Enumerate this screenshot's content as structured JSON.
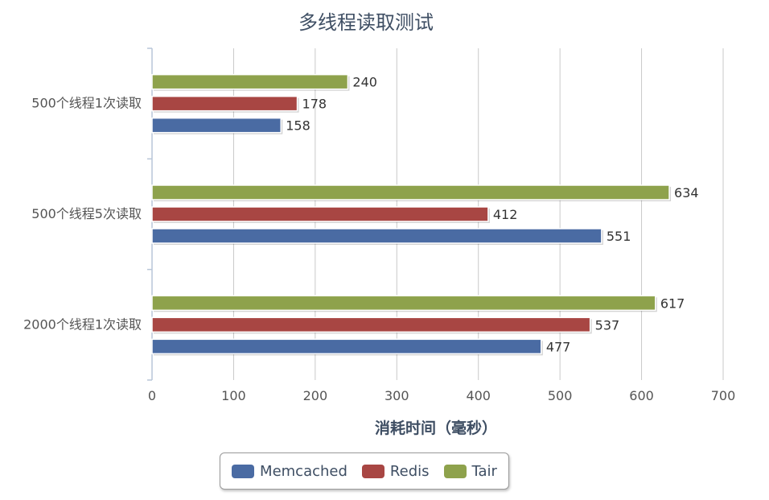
{
  "chart_data": {
    "type": "bar",
    "orientation": "horizontal",
    "title": "多线程读取测试",
    "xlabel": "消耗时间（毫秒）",
    "ylabel": "",
    "xlim": [
      0,
      700
    ],
    "ticks": [
      "0",
      "100",
      "200",
      "300",
      "400",
      "500",
      "600",
      "700"
    ],
    "grid": true,
    "legend_position": "bottom",
    "categories": [
      "500个线程1次读取",
      "500个线程5次读取",
      "2000个线程1次读取"
    ],
    "series": [
      {
        "name": "Memcached",
        "color": "#4a6ba3",
        "values": [
          158,
          551,
          477
        ]
      },
      {
        "name": "Redis",
        "color": "#a84643",
        "values": [
          178,
          412,
          537
        ]
      },
      {
        "name": "Tair",
        "color": "#8ea24c",
        "values": [
          240,
          634,
          617
        ]
      }
    ]
  }
}
